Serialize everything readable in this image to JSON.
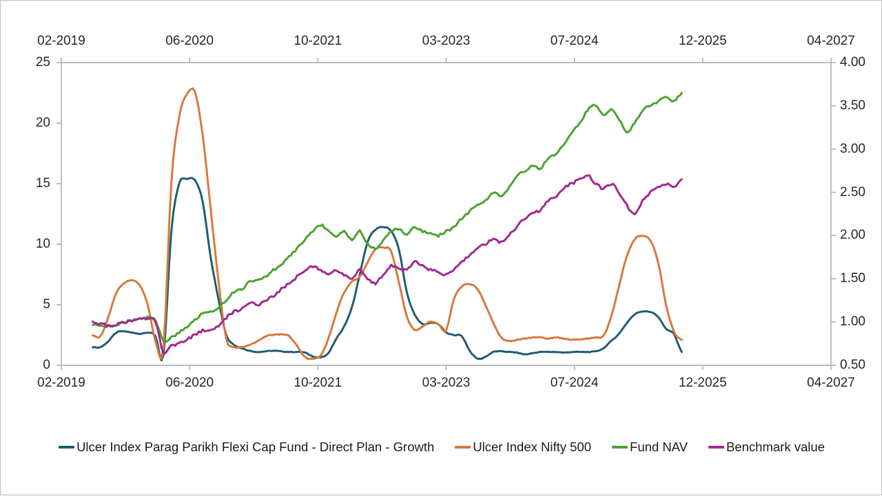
{
  "chart_data": {
    "type": "line",
    "title": "",
    "x_axis": {
      "tick_labels": [
        "02-2019",
        "06-2020",
        "10-2021",
        "03-2023",
        "07-2024",
        "12-2025",
        "04-2027"
      ],
      "axis_shown": "top and bottom",
      "months_total": 98,
      "series_start_month": "06-2019",
      "series_start_offset_months": 4,
      "series_interval": "monthly"
    },
    "y_left_axis": {
      "label": "",
      "tick_labels": [
        "0",
        "5",
        "10",
        "15",
        "20",
        "25"
      ],
      "tick_values": [
        0,
        5,
        10,
        15,
        20,
        25
      ],
      "min": 0,
      "max": 25
    },
    "y_right_axis": {
      "label": "",
      "tick_labels": [
        "0.50",
        "1.00",
        "1.50",
        "2.00",
        "2.50",
        "3.00",
        "3.50",
        "4.00"
      ],
      "tick_values": [
        0.5,
        1.0,
        1.5,
        2.0,
        2.5,
        3.0,
        3.5,
        4.0
      ],
      "min": 0.5,
      "max": 4.0
    },
    "legend_position": "bottom",
    "grid": "off",
    "colors": {
      "axis_line": "#A6A6A6",
      "tick_text": "#262626",
      "legend_text": "#1a1a1a",
      "background": "#FFFFFF",
      "frame_border": "#BFBFBF"
    },
    "series": [
      {
        "name": "Ulcer Index Parag Parikh Flexi Cap Fund - Direct Plan - Growth",
        "color": "#1F5C74",
        "axis": "left",
        "values": [
          1.5,
          1.5,
          2.0,
          2.7,
          2.8,
          2.7,
          2.6,
          2.7,
          2.4,
          0.8,
          11.0,
          15.0,
          15.4,
          15.3,
          13.5,
          9.0,
          5.5,
          2.5,
          1.7,
          1.4,
          1.2,
          1.1,
          1.15,
          1.2,
          1.15,
          1.1,
          1.1,
          1.05,
          0.75,
          0.65,
          1.0,
          2.2,
          3.2,
          4.8,
          7.5,
          10.2,
          11.2,
          11.4,
          11.1,
          9.5,
          6.0,
          4.2,
          3.4,
          3.5,
          3.4,
          2.7,
          2.5,
          2.4,
          1.2,
          0.55,
          0.7,
          1.1,
          1.15,
          1.1,
          1.05,
          0.9,
          1.0,
          1.1,
          1.1,
          1.1,
          1.05,
          1.1,
          1.1,
          1.1,
          1.15,
          1.4,
          2.0,
          2.6,
          3.5,
          4.2,
          4.45,
          4.4,
          4.0,
          3.0,
          2.6,
          1.1
        ]
      },
      {
        "name": "Ulcer Index Nifty 500",
        "color": "#D9783B",
        "axis": "left",
        "values": [
          2.5,
          2.4,
          4.0,
          6.0,
          6.8,
          7.0,
          6.6,
          5.0,
          2.0,
          1.5,
          15.0,
          20.5,
          22.4,
          22.6,
          19.0,
          13.0,
          7.0,
          2.2,
          1.5,
          1.5,
          1.7,
          2.0,
          2.4,
          2.5,
          2.55,
          2.4,
          1.6,
          0.7,
          0.55,
          0.8,
          2.2,
          4.3,
          6.0,
          6.9,
          7.3,
          8.5,
          9.6,
          9.7,
          9.4,
          6.8,
          4.0,
          2.9,
          3.2,
          3.6,
          3.4,
          2.9,
          5.5,
          6.5,
          6.7,
          6.3,
          5.0,
          3.5,
          2.3,
          2.0,
          2.1,
          2.2,
          2.3,
          2.3,
          2.2,
          2.3,
          2.2,
          2.1,
          2.15,
          2.2,
          2.3,
          2.4,
          4.0,
          6.5,
          9.0,
          10.4,
          10.7,
          10.3,
          8.5,
          5.0,
          2.8,
          2.1
        ]
      },
      {
        "name": "Fund NAV",
        "color": "#4BA32F",
        "axis": "right",
        "values": [
          0.97,
          0.96,
          0.95,
          0.97,
          1.0,
          1.02,
          1.04,
          1.06,
          1.02,
          0.78,
          0.82,
          0.88,
          0.95,
          1.02,
          1.1,
          1.12,
          1.16,
          1.26,
          1.35,
          1.38,
          1.47,
          1.48,
          1.52,
          1.6,
          1.66,
          1.75,
          1.85,
          1.95,
          2.05,
          2.12,
          2.05,
          2.0,
          2.05,
          1.95,
          2.05,
          1.9,
          1.85,
          1.95,
          2.05,
          2.08,
          2.02,
          2.1,
          2.05,
          2.02,
          2.0,
          2.05,
          2.1,
          2.2,
          2.28,
          2.35,
          2.4,
          2.5,
          2.45,
          2.55,
          2.68,
          2.75,
          2.8,
          2.78,
          2.9,
          2.95,
          3.05,
          3.2,
          3.3,
          3.45,
          3.5,
          3.4,
          3.45,
          3.35,
          3.2,
          3.3,
          3.45,
          3.5,
          3.55,
          3.6,
          3.55,
          3.65
        ]
      },
      {
        "name": "Benchmark value",
        "color": "#A3288F",
        "axis": "right",
        "values": [
          1.0,
          0.98,
          0.96,
          0.97,
          0.99,
          1.02,
          1.03,
          1.04,
          1.0,
          0.65,
          0.72,
          0.75,
          0.8,
          0.85,
          0.9,
          0.9,
          0.95,
          1.05,
          1.12,
          1.15,
          1.22,
          1.2,
          1.25,
          1.3,
          1.38,
          1.45,
          1.52,
          1.6,
          1.65,
          1.6,
          1.55,
          1.6,
          1.55,
          1.5,
          1.6,
          1.5,
          1.45,
          1.55,
          1.65,
          1.63,
          1.6,
          1.7,
          1.65,
          1.6,
          1.58,
          1.55,
          1.62,
          1.7,
          1.78,
          1.85,
          1.9,
          1.95,
          1.92,
          2.0,
          2.1,
          2.2,
          2.25,
          2.3,
          2.4,
          2.45,
          2.55,
          2.6,
          2.65,
          2.7,
          2.6,
          2.55,
          2.6,
          2.5,
          2.35,
          2.25,
          2.4,
          2.5,
          2.55,
          2.6,
          2.55,
          2.65
        ]
      }
    ]
  }
}
